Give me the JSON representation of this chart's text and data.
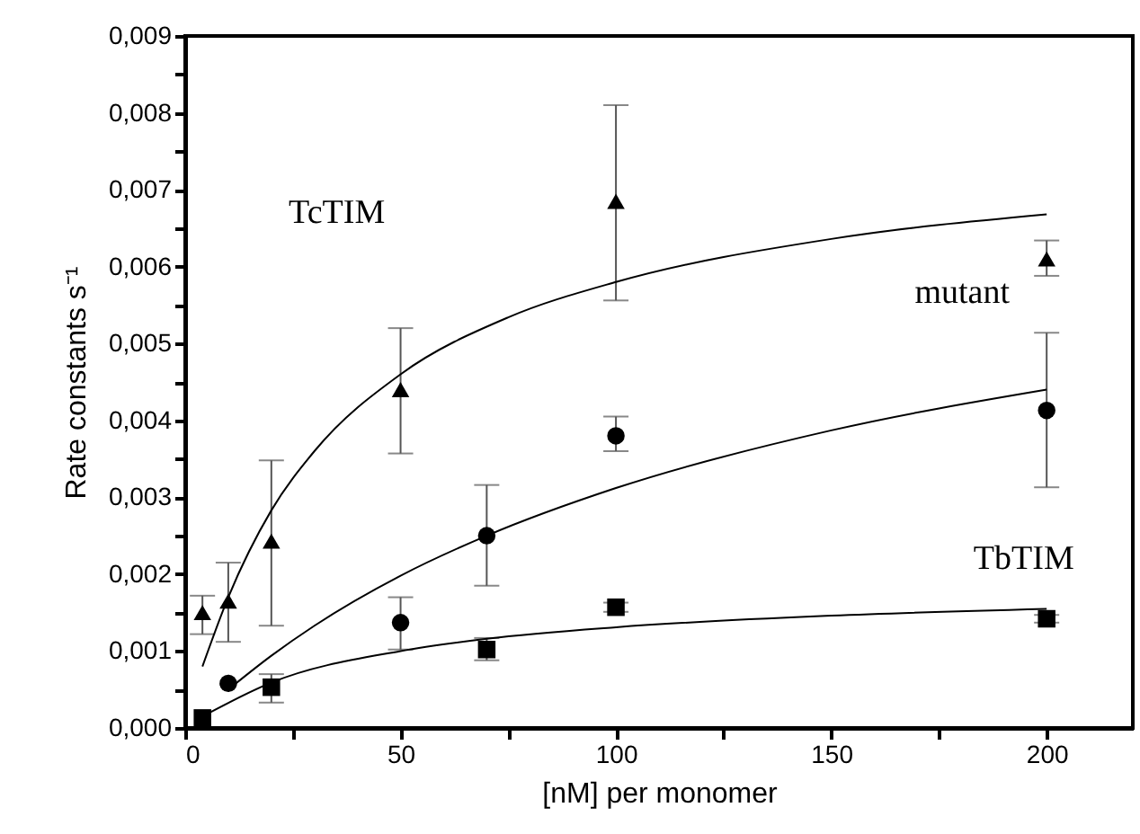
{
  "chart_data": {
    "type": "scatter",
    "xlabel": "[nM] per monomer",
    "ylabel": "Rate constants s⁻¹",
    "xlim": [
      0,
      220
    ],
    "xticks": [
      0,
      {
        "value": 25,
        "label": null
      },
      50,
      {
        "value": 75,
        "label": null
      },
      100,
      {
        "value": 125,
        "label": null
      },
      150,
      {
        "value": 175,
        "label": null
      },
      200
    ],
    "ylim": [
      0,
      0.009
    ],
    "yticks": [
      {
        "value": 0,
        "label": "0,000"
      },
      {
        "value": 0.0005,
        "label": null
      },
      {
        "value": 0.001,
        "label": "0,001"
      },
      {
        "value": 0.0015,
        "label": null
      },
      {
        "value": 0.002,
        "label": "0,002"
      },
      {
        "value": 0.0025,
        "label": null
      },
      {
        "value": 0.003,
        "label": "0,003"
      },
      {
        "value": 0.0035,
        "label": null
      },
      {
        "value": 0.004,
        "label": "0,004"
      },
      {
        "value": 0.0045,
        "label": null
      },
      {
        "value": 0.005,
        "label": "0,005"
      },
      {
        "value": 0.0055,
        "label": null
      },
      {
        "value": 0.006,
        "label": "0,006"
      },
      {
        "value": 0.0065,
        "label": null
      },
      {
        "value": 0.007,
        "label": "0,007"
      },
      {
        "value": 0.0075,
        "label": null
      },
      {
        "value": 0.008,
        "label": "0,008"
      },
      {
        "value": 0.0085,
        "label": null
      },
      {
        "value": 0.009,
        "label": "0,009"
      }
    ],
    "grid": false,
    "series": [
      {
        "marker": "triangle",
        "color": "#000000",
        "x": [
          4,
          10,
          20,
          50,
          100,
          200
        ],
        "values": [
          0.0015,
          0.00165,
          0.00243,
          0.0044,
          0.00685,
          0.0061
        ],
        "errors": [
          [
            0.00122,
            0.00172
          ],
          [
            0.00112,
            0.00215
          ],
          [
            0.00133,
            0.00348
          ],
          [
            0.00357,
            0.0052
          ],
          [
            0.00556,
            0.0081
          ],
          [
            0.00588,
            0.00634
          ]
        ]
      },
      {
        "marker": "circle",
        "color": "#000000",
        "x": [
          10,
          50,
          70,
          100,
          200
        ],
        "values": [
          0.00058,
          0.00137,
          0.0025,
          0.0038,
          0.00413
        ],
        "errors": [
          null,
          [
            0.00102,
            0.0017
          ],
          [
            0.00185,
            0.00316
          ],
          [
            0.0036,
            0.00405
          ],
          [
            0.00313,
            0.00514
          ]
        ]
      },
      {
        "marker": "square",
        "color": "#000000",
        "x": [
          4,
          20,
          70,
          100,
          200
        ],
        "values": [
          0.00013,
          0.00053,
          0.00102,
          0.00157,
          0.00142
        ],
        "errors": [
          null,
          [
            0.00033,
            0.0007
          ],
          [
            0.00088,
            0.00117
          ],
          [
            0.00151,
            0.00163
          ],
          [
            0.00137,
            0.00147
          ]
        ]
      },
      {
        "type": "line",
        "marker": "none",
        "color": "#000000",
        "x": [
          4,
          10,
          20,
          30,
          50,
          75,
          100,
          150,
          200
        ],
        "values": [
          0.0008,
          0.0017,
          0.00283,
          0.0036,
          0.0046,
          0.00534,
          0.0058,
          0.00636,
          0.00668
        ]
      },
      {
        "type": "line",
        "marker": "none",
        "color": "#000000",
        "x": [
          10,
          20,
          30,
          50,
          70,
          100,
          150,
          200
        ],
        "values": [
          0.0005,
          0.00094,
          0.00133,
          0.00198,
          0.0025,
          0.00312,
          0.00387,
          0.0044
        ]
      },
      {
        "type": "line",
        "marker": "none",
        "color": "#000000",
        "x": [
          4,
          20,
          50,
          70,
          100,
          150,
          200
        ],
        "values": [
          0.00015,
          0.00059,
          0.001,
          0.00116,
          0.00131,
          0.00146,
          0.00155
        ]
      }
    ],
    "annotations": [
      "TcTIM",
      "mutant",
      "TbTIM"
    ]
  }
}
